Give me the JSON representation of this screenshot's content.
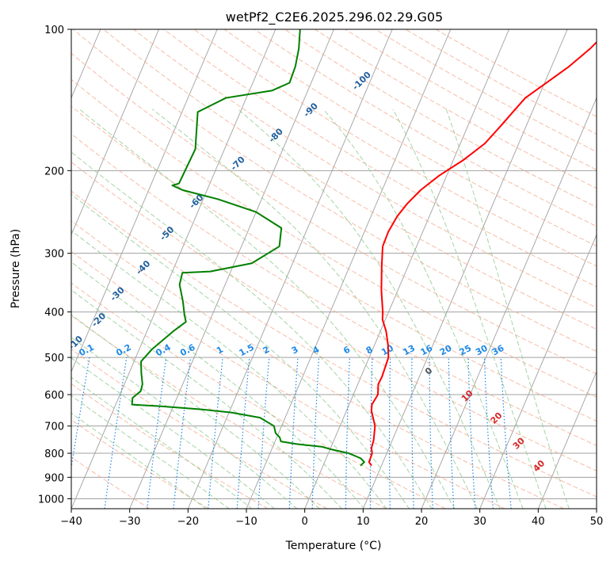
{
  "chart_data": {
    "type": "skew-t",
    "title": "wetPf2_C2E6.2025.296.02.29.G05",
    "xlabel": "Temperature (°C)",
    "ylabel": "Pressure (hPa)",
    "xlim": [
      -40,
      50
    ],
    "ylim": [
      1050,
      100
    ],
    "xticks": [
      -40,
      -30,
      -20,
      -10,
      0,
      10,
      20,
      30,
      40,
      50
    ],
    "yticks": [
      1000,
      900,
      800,
      700,
      600,
      500,
      400,
      300,
      200,
      100
    ],
    "skew": 35,
    "colors": {
      "temperature": "#ff0000",
      "dewpoint": "#008000",
      "isotherm": "#a0a0a0",
      "dry_adiabat": "#f4a58a",
      "moist_adiabat": "#8fc98f",
      "mixing_ratio": "#1e88e5",
      "theta_e_label": "#1f5f9e",
      "wetbulb_label": "#d62728",
      "axis": "#000000"
    },
    "series": [
      {
        "name": "Temperature",
        "points": [
          [
            850,
            8.3
          ],
          [
            835,
            7.6
          ],
          [
            800,
            7.5
          ],
          [
            780,
            7.0
          ],
          [
            750,
            6.8
          ],
          [
            700,
            6.0
          ],
          [
            650,
            4.3
          ],
          [
            630,
            3.9
          ],
          [
            600,
            4.2
          ],
          [
            570,
            3.5
          ],
          [
            550,
            3.6
          ],
          [
            500,
            3.3
          ],
          [
            470,
            2.3
          ],
          [
            440,
            1.0
          ],
          [
            415,
            -0.5
          ],
          [
            400,
            -1.0
          ],
          [
            360,
            -2.8
          ],
          [
            320,
            -4.5
          ],
          [
            290,
            -5.8
          ],
          [
            270,
            -5.9
          ],
          [
            250,
            -5.5
          ],
          [
            235,
            -4.7
          ],
          [
            220,
            -3.4
          ],
          [
            205,
            -1.3
          ],
          [
            190,
            1.7
          ],
          [
            175,
            4.2
          ],
          [
            160,
            5.7
          ],
          [
            150,
            6.7
          ],
          [
            140,
            7.8
          ],
          [
            130,
            10.3
          ],
          [
            120,
            13.0
          ],
          [
            110,
            15.3
          ],
          [
            100,
            17.2
          ]
        ]
      },
      {
        "name": "Dewpoint",
        "points": [
          [
            850,
            6.4
          ],
          [
            835,
            6.8
          ],
          [
            820,
            5.9
          ],
          [
            800,
            3.5
          ],
          [
            785,
            0.2
          ],
          [
            775,
            -1.5
          ],
          [
            765,
            -6.0
          ],
          [
            755,
            -9.0
          ],
          [
            740,
            -9.5
          ],
          [
            725,
            -10.5
          ],
          [
            700,
            -11.3
          ],
          [
            672,
            -14.3
          ],
          [
            655,
            -19.6
          ],
          [
            645,
            -25.0
          ],
          [
            635,
            -32.3
          ],
          [
            630,
            -37.2
          ],
          [
            610,
            -37.6
          ],
          [
            590,
            -36.7
          ],
          [
            570,
            -36.9
          ],
          [
            540,
            -37.9
          ],
          [
            510,
            -38.8
          ],
          [
            480,
            -37.8
          ],
          [
            440,
            -35.5
          ],
          [
            420,
            -34.0
          ],
          [
            405,
            -34.8
          ],
          [
            380,
            -36.0
          ],
          [
            350,
            -37.8
          ],
          [
            330,
            -38.2
          ],
          [
            328,
            -33.5
          ],
          [
            315,
            -27.0
          ],
          [
            290,
            -23.5
          ],
          [
            265,
            -24.5
          ],
          [
            245,
            -30.0
          ],
          [
            230,
            -37.5
          ],
          [
            220,
            -44.2
          ],
          [
            215,
            -46.3
          ],
          [
            213,
            -45.3
          ],
          [
            180,
            -45.0
          ],
          [
            150,
            -47.3
          ],
          [
            140,
            -43.5
          ],
          [
            135,
            -36.1
          ],
          [
            130,
            -33.7
          ],
          [
            120,
            -33.9
          ],
          [
            110,
            -34.6
          ],
          [
            100,
            -35.8
          ]
        ]
      }
    ],
    "theta_e_labels": [
      "-100",
      "-90",
      "-80",
      "-70",
      "-60",
      "-50",
      "-40",
      "-30",
      "-20",
      "-10"
    ],
    "mixing_ratio_labels": [
      "0.1",
      "0.2",
      "0.4",
      "0.6",
      "1",
      "1.5",
      "2",
      "3",
      "4",
      "6",
      "8",
      "10",
      "13",
      "16",
      "20",
      "25",
      "30",
      "36"
    ],
    "wetbulb_labels": [
      "0",
      "10",
      "20",
      "30",
      "40"
    ]
  }
}
